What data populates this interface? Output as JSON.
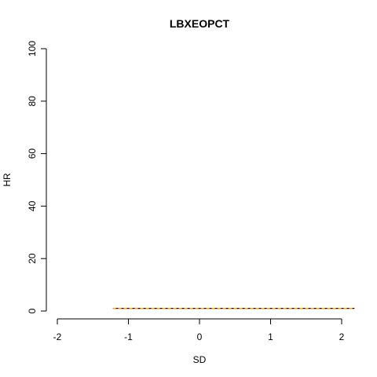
{
  "chart_data": {
    "type": "line",
    "title": "LBXEOPCT",
    "xlabel": "SD",
    "ylabel": "HR",
    "xlim": [
      -2,
      2
    ],
    "ylim": [
      0,
      100
    ],
    "xticks": [
      -2,
      -1,
      0,
      1,
      2
    ],
    "yticks": [
      0,
      20,
      40,
      60,
      80,
      100
    ],
    "grid": false,
    "series": [
      {
        "style": "solid",
        "color": "#000000",
        "x": [
          -1.22,
          2.18
        ],
        "y": [
          1.0,
          1.0
        ]
      },
      {
        "style": "dashed",
        "color": "#f5a623",
        "x": [
          -1.22,
          2.18
        ],
        "y": [
          1.05,
          0.98
        ]
      },
      {
        "style": "dashed",
        "color": "#f5a623",
        "x": [
          -1.22,
          2.18
        ],
        "y": [
          0.96,
          1.02
        ]
      }
    ]
  }
}
